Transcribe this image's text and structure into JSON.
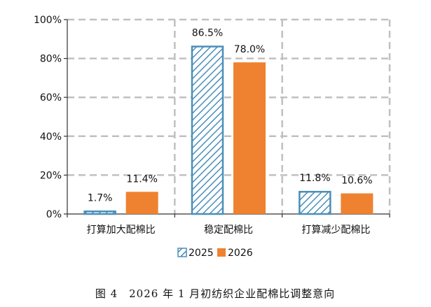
{
  "chart_data": {
    "type": "bar",
    "categories": [
      "打算加大配棉比",
      "稳定配棉比",
      "打算减少配棉比"
    ],
    "series": [
      {
        "name": "2025",
        "values": [
          1.7,
          86.5,
          11.8
        ],
        "data_labels": [
          "1.7%",
          "86.5%",
          "11.8%"
        ],
        "color": "#4a8fb8",
        "pattern": "hatched"
      },
      {
        "name": "2026",
        "values": [
          11.4,
          78.0,
          10.6
        ],
        "data_labels": [
          "11.4%",
          "78.0%",
          "10.6%"
        ],
        "color": "#ef8230",
        "pattern": "solid"
      }
    ],
    "ylim": [
      0,
      100
    ],
    "yticks": [
      0,
      20,
      40,
      60,
      80,
      100
    ],
    "ytick_labels": [
      "0%",
      "20%",
      "40%",
      "60%",
      "80%",
      "100%"
    ],
    "grid": "dashed",
    "grid_color": "#c0c0c0",
    "legend_position": "bottom",
    "title": "",
    "xlabel": "",
    "ylabel": ""
  },
  "caption": "图 4　2026 年 1 月初纺织企业配棉比调整意向"
}
